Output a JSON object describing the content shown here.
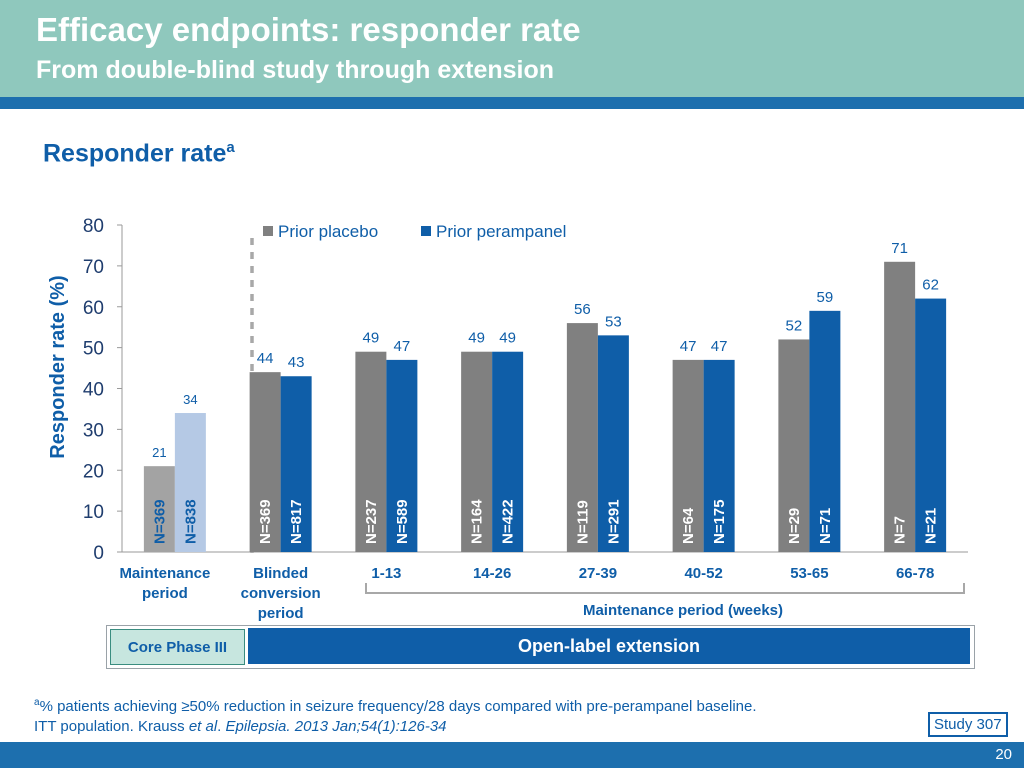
{
  "header": {
    "title": "Efficacy endpoints: responder rate",
    "subtitle": "From double-blind study through extension"
  },
  "section": {
    "title": "Responder rate",
    "superscript": "a"
  },
  "chart_data": {
    "type": "bar",
    "ylabel": "Responder rate (%)",
    "ylim": [
      0,
      80
    ],
    "yticks": [
      0,
      10,
      20,
      30,
      40,
      50,
      60,
      70,
      80
    ],
    "categories": [
      "Maintenance period",
      "Blinded conversion period",
      "1-13",
      "14-26",
      "27-39",
      "40-52",
      "53-65",
      "66-78"
    ],
    "series": [
      {
        "name": "Prior placebo",
        "values": [
          21,
          44,
          49,
          49,
          56,
          47,
          52,
          71
        ],
        "n_labels": [
          "N=369",
          "N=369",
          "N=237",
          "N=164",
          "N=119",
          "N=64",
          "N=29",
          "N=7"
        ],
        "color": "#808080",
        "first_color": "#a3a3a3"
      },
      {
        "name": "Prior perampanel",
        "values": [
          34,
          43,
          47,
          49,
          53,
          47,
          59,
          62
        ],
        "n_labels": [
          "N=838",
          "N=817",
          "N=589",
          "N=422",
          "N=291",
          "N=175",
          "N=71",
          "N=21"
        ],
        "color": "#0f5ea8",
        "first_color": "#b5c9e5"
      }
    ],
    "bracket_label": "Maintenance period (weeks)",
    "legend_position": "top",
    "grid": false
  },
  "phases": {
    "core": "Core Phase III",
    "extension": "Open-label extension"
  },
  "footnote": {
    "marker": "a",
    "text": "% patients achieving ≥50% reduction in seizure frequency/28 days compared with pre-perampanel baseline.",
    "ref_prefix": "ITT population. Krauss ",
    "ref_etal": "et al",
    "ref_dot": ". ",
    "ref_journal": "Epilepsia. 2013 Jan;54(1):126-34"
  },
  "study_badge": "Study 307",
  "page_number": "20",
  "colors": {
    "header": "#8fc8bd",
    "accent": "#1d6fae",
    "blue": "#0f5ea8"
  }
}
